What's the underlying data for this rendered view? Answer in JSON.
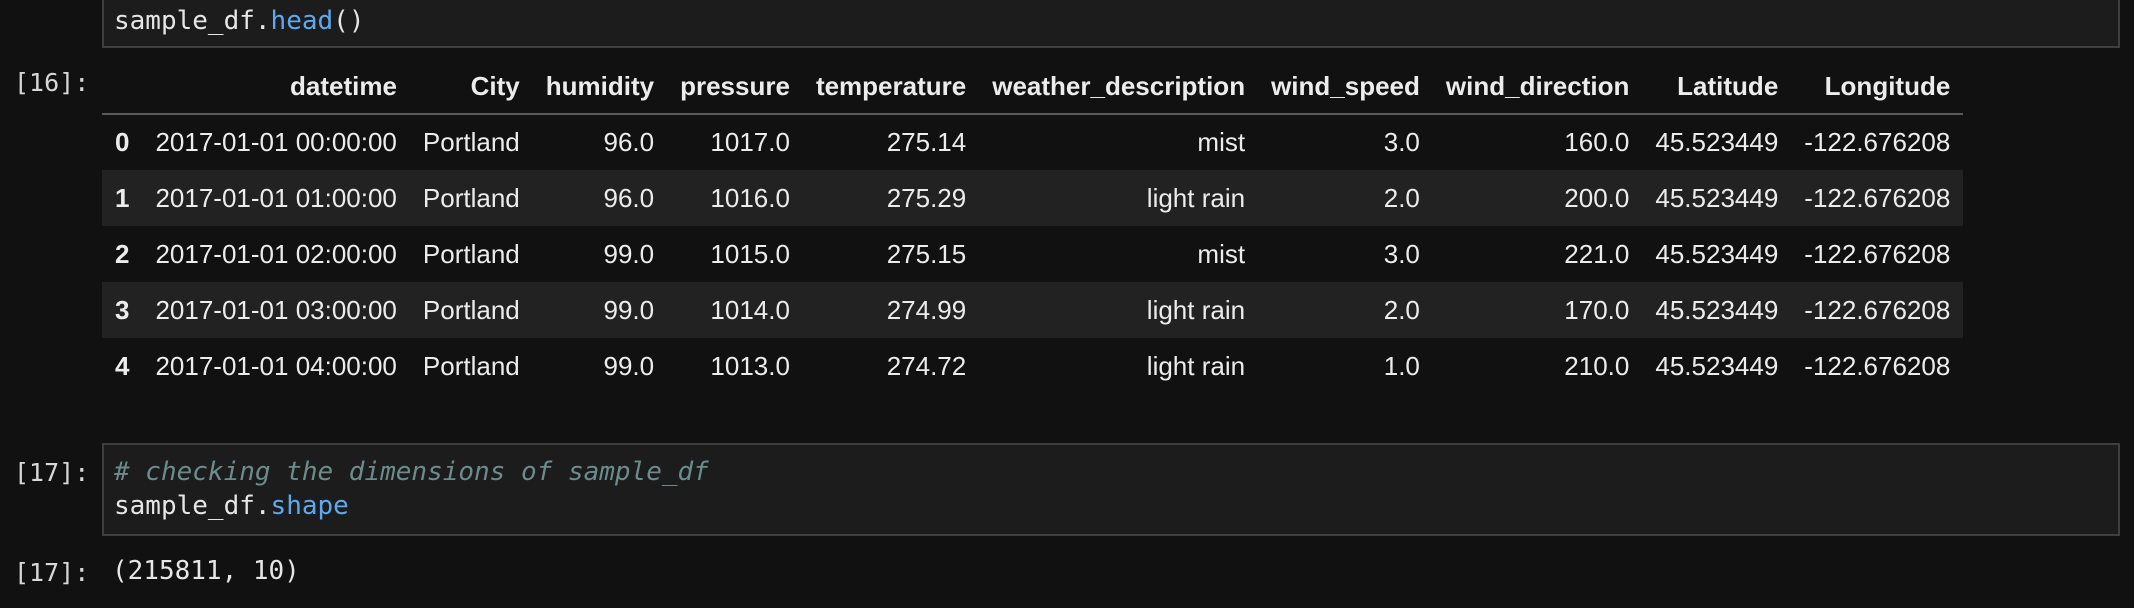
{
  "cell16": {
    "prompt": "[16]:",
    "code_obj": "sample_df.",
    "code_method": "head",
    "code_call": "()"
  },
  "dataframe": {
    "columns": [
      "datetime",
      "City",
      "humidity",
      "pressure",
      "temperature",
      "weather_description",
      "wind_speed",
      "wind_direction",
      "Latitude",
      "Longitude"
    ],
    "rows": [
      {
        "index": "0",
        "cells": [
          "2017-01-01 00:00:00",
          "Portland",
          "96.0",
          "1017.0",
          "275.14",
          "mist",
          "3.0",
          "160.0",
          "45.523449",
          "-122.676208"
        ]
      },
      {
        "index": "1",
        "cells": [
          "2017-01-01 01:00:00",
          "Portland",
          "96.0",
          "1016.0",
          "275.29",
          "light rain",
          "2.0",
          "200.0",
          "45.523449",
          "-122.676208"
        ]
      },
      {
        "index": "2",
        "cells": [
          "2017-01-01 02:00:00",
          "Portland",
          "99.0",
          "1015.0",
          "275.15",
          "mist",
          "3.0",
          "221.0",
          "45.523449",
          "-122.676208"
        ]
      },
      {
        "index": "3",
        "cells": [
          "2017-01-01 03:00:00",
          "Portland",
          "99.0",
          "1014.0",
          "274.99",
          "light rain",
          "2.0",
          "170.0",
          "45.523449",
          "-122.676208"
        ]
      },
      {
        "index": "4",
        "cells": [
          "2017-01-01 04:00:00",
          "Portland",
          "99.0",
          "1013.0",
          "274.72",
          "light rain",
          "1.0",
          "210.0",
          "45.523449",
          "-122.676208"
        ]
      }
    ]
  },
  "cell17": {
    "prompt_in": "[17]:",
    "comment": "# checking the dimensions of sample_df",
    "code_obj": "sample_df.",
    "code_attr": "shape",
    "prompt_out": "[17]:",
    "output": "(215811, 10)"
  },
  "colors": {
    "background": "#111111",
    "cell_input_bg": "#1c1c1c",
    "cell_border": "#3e3e3e",
    "comment": "#6c8b8c",
    "attribute": "#5fa8ee",
    "striped_row": "#222222"
  }
}
